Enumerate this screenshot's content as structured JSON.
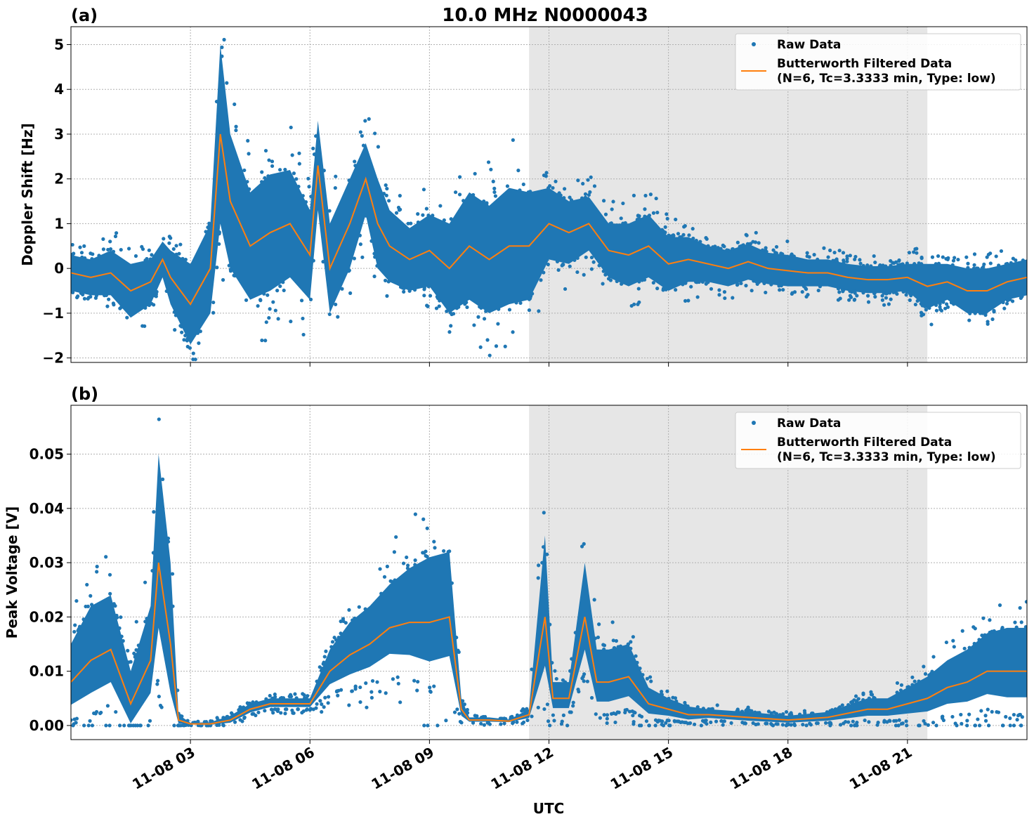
{
  "title": "10.0 MHz N0000043",
  "xlabel": "UTC",
  "chart_data": [
    {
      "type": "scatter",
      "panel_label": "(a)",
      "ylabel": "Doppler Shift [Hz]",
      "xlim_hours": [
        0,
        24
      ],
      "ylim": [
        -2.1,
        5.4
      ],
      "yticks": [
        -2,
        -1,
        0,
        1,
        2,
        3,
        4,
        5
      ],
      "ytick_labels": [
        "−2",
        "−1",
        "0",
        "1",
        "2",
        "3",
        "4",
        "5"
      ],
      "grid": true,
      "shaded_region_hours": [
        11.5,
        21.5
      ],
      "legend": {
        "placement": "top-right",
        "entries": [
          "Raw Data",
          "Butterworth Filtered Data",
          "(N=6, Tc=3.3333 min, Type: low)"
        ]
      },
      "colors": {
        "raw": "#1f77b4",
        "filtered": "#ff7f0e",
        "shade": "#e6e6e6"
      },
      "t_hours": [
        0,
        0.5,
        1,
        1.5,
        2,
        2.3,
        2.5,
        3,
        3.5,
        3.75,
        4,
        4.5,
        5,
        5.5,
        6,
        6.2,
        6.5,
        7,
        7.4,
        7.7,
        8,
        8.5,
        9,
        9.5,
        10,
        10.5,
        11,
        11.5,
        12,
        12.5,
        13,
        13.5,
        14,
        14.5,
        15,
        15.5,
        16,
        16.5,
        17,
        17.5,
        18,
        18.5,
        19,
        19.5,
        20,
        20.5,
        21,
        21.5,
        22,
        22.5,
        23,
        23.5,
        24
      ],
      "filtered": [
        -0.1,
        -0.2,
        -0.1,
        -0.5,
        -0.3,
        0.2,
        -0.2,
        -0.8,
        0.0,
        3.0,
        1.5,
        0.5,
        0.8,
        1.0,
        0.3,
        2.3,
        0.0,
        1.0,
        2.0,
        1.0,
        0.5,
        0.2,
        0.4,
        0.0,
        0.5,
        0.2,
        0.5,
        0.5,
        1.0,
        0.8,
        1.0,
        0.4,
        0.3,
        0.5,
        0.1,
        0.2,
        0.1,
        0.0,
        0.15,
        0.0,
        -0.05,
        -0.1,
        -0.1,
        -0.2,
        -0.25,
        -0.25,
        -0.2,
        -0.4,
        -0.3,
        -0.5,
        -0.5,
        -0.3,
        -0.2
      ],
      "raw_spread": [
        0.4,
        0.4,
        0.5,
        0.6,
        0.5,
        0.4,
        0.6,
        0.9,
        1.0,
        2.0,
        1.5,
        1.2,
        1.3,
        1.2,
        1.0,
        1.0,
        1.0,
        1.0,
        0.8,
        1.0,
        0.8,
        0.7,
        0.8,
        1.0,
        1.2,
        1.2,
        1.3,
        1.2,
        0.8,
        0.7,
        0.6,
        0.6,
        0.7,
        0.7,
        0.6,
        0.5,
        0.4,
        0.4,
        0.4,
        0.35,
        0.35,
        0.3,
        0.3,
        0.3,
        0.3,
        0.3,
        0.3,
        0.5,
        0.4,
        0.5,
        0.5,
        0.4,
        0.4
      ]
    },
    {
      "type": "scatter",
      "panel_label": "(b)",
      "ylabel": "Peak Voltage [V]",
      "xlim_hours": [
        0,
        24
      ],
      "ylim": [
        -0.0026,
        0.059
      ],
      "yticks": [
        0,
        0.01,
        0.02,
        0.03,
        0.04,
        0.05
      ],
      "ytick_labels": [
        "0.00",
        "0.01",
        "0.02",
        "0.03",
        "0.04",
        "0.05"
      ],
      "xticks_hours": [
        3,
        6,
        9,
        12,
        15,
        18,
        21
      ],
      "xtick_labels": [
        "11-08 03",
        "11-08 06",
        "11-08 09",
        "11-08 12",
        "11-08 15",
        "11-08 18",
        "11-08 21"
      ],
      "grid": true,
      "shaded_region_hours": [
        11.5,
        21.5
      ],
      "legend": {
        "placement": "top-right",
        "entries": [
          "Raw Data",
          "Butterworth Filtered Data",
          "(N=6, Tc=3.3333 min, Type: low)"
        ]
      },
      "colors": {
        "raw": "#1f77b4",
        "filtered": "#ff7f0e",
        "shade": "#e6e6e6"
      },
      "t_hours": [
        0,
        0.5,
        1,
        1.5,
        2,
        2.2,
        2.5,
        2.7,
        3,
        3.5,
        4,
        4.5,
        5,
        5.5,
        6,
        6.5,
        7,
        7.5,
        8,
        8.5,
        9,
        9.5,
        9.8,
        10,
        10.5,
        11,
        11.5,
        11.9,
        12.1,
        12.5,
        12.9,
        13.2,
        13.5,
        14,
        14.5,
        15,
        15.5,
        16,
        17,
        18,
        19,
        20,
        20.5,
        21,
        21.5,
        22,
        22.5,
        23,
        23.5,
        24
      ],
      "filtered": [
        0.008,
        0.012,
        0.014,
        0.004,
        0.012,
        0.03,
        0.015,
        0.001,
        0.0003,
        0.0003,
        0.001,
        0.003,
        0.004,
        0.004,
        0.004,
        0.01,
        0.013,
        0.015,
        0.018,
        0.019,
        0.019,
        0.02,
        0.003,
        0.001,
        0.001,
        0.0008,
        0.002,
        0.02,
        0.005,
        0.005,
        0.02,
        0.008,
        0.008,
        0.009,
        0.004,
        0.003,
        0.002,
        0.002,
        0.0015,
        0.001,
        0.0015,
        0.003,
        0.003,
        0.004,
        0.005,
        0.007,
        0.008,
        0.01,
        0.01,
        0.01
      ],
      "raw_spread": [
        0.007,
        0.01,
        0.01,
        0.006,
        0.01,
        0.02,
        0.015,
        0.001,
        0.0002,
        0.0003,
        0.0008,
        0.001,
        0.001,
        0.001,
        0.001,
        0.004,
        0.006,
        0.007,
        0.008,
        0.01,
        0.012,
        0.012,
        0.002,
        0.0005,
        0.0005,
        0.0003,
        0.001,
        0.015,
        0.003,
        0.003,
        0.01,
        0.006,
        0.006,
        0.006,
        0.003,
        0.002,
        0.0015,
        0.001,
        0.001,
        0.0008,
        0.001,
        0.002,
        0.002,
        0.003,
        0.004,
        0.005,
        0.006,
        0.007,
        0.008,
        0.008
      ]
    }
  ]
}
